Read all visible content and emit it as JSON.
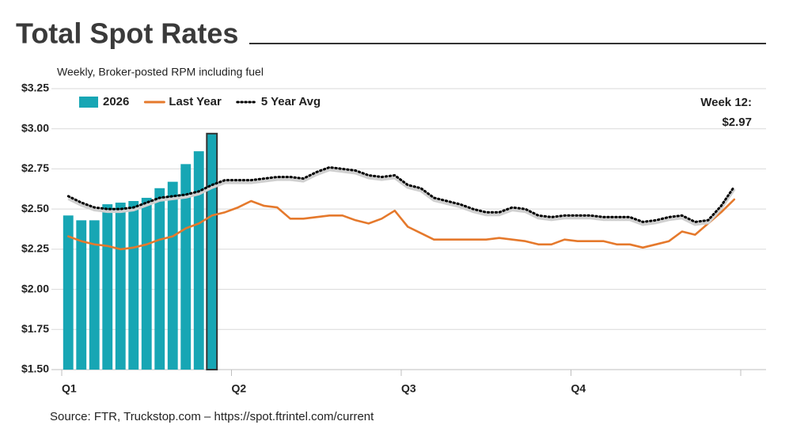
{
  "chart_data": {
    "type": "bar-line",
    "title": "Total Spot Rates",
    "subtitle": "Weekly, Broker-posted RPM including fuel",
    "source": "Source: FTR, Truckstop.com – https://spot.ftrintel.com/current",
    "annotation": "Week 12:",
    "x": [
      1,
      2,
      3,
      4,
      5,
      6,
      7,
      8,
      9,
      10,
      11,
      12,
      13,
      14,
      15,
      16,
      17,
      18,
      19,
      20,
      21,
      22,
      23,
      24,
      25,
      26,
      27,
      28,
      29,
      30,
      31,
      32,
      33,
      34,
      35,
      36,
      37,
      38,
      39,
      40,
      41,
      42,
      43,
      44,
      45,
      46,
      47,
      48,
      49,
      50,
      51,
      52
    ],
    "xlim": [
      0.5,
      52.5
    ],
    "xticks": [
      {
        "value": 0.5,
        "label": "Q1"
      },
      {
        "value": 13.5,
        "label": "Q2"
      },
      {
        "value": 26.5,
        "label": "Q3"
      },
      {
        "value": 39.5,
        "label": "Q4"
      }
    ],
    "ylim": [
      1.5,
      3.25
    ],
    "yticks": [
      {
        "value": 1.5,
        "label": "$1.50"
      },
      {
        "value": 1.75,
        "label": "$1.75"
      },
      {
        "value": 2.0,
        "label": "$2.00"
      },
      {
        "value": 2.25,
        "label": "$2.25"
      },
      {
        "value": 2.5,
        "label": "$2.50"
      },
      {
        "value": 2.75,
        "label": "$2.75"
      },
      {
        "value": 3.0,
        "label": "$3.00"
      },
      {
        "value": 3.25,
        "label": "$3.25"
      }
    ],
    "grid": true,
    "series": [
      {
        "name": "2026",
        "type": "bar",
        "color": "#17a6b4",
        "values": [
          2.46,
          2.43,
          2.43,
          2.53,
          2.54,
          2.55,
          2.57,
          2.63,
          2.67,
          2.78,
          2.86,
          2.97,
          null,
          null,
          null,
          null,
          null,
          null,
          null,
          null,
          null,
          null,
          null,
          null,
          null,
          null,
          null,
          null,
          null,
          null,
          null,
          null,
          null,
          null,
          null,
          null,
          null,
          null,
          null,
          null,
          null,
          null,
          null,
          null,
          null,
          null,
          null,
          null,
          null,
          null,
          null,
          null
        ],
        "value_labels": [
          null,
          null,
          null,
          null,
          null,
          null,
          null,
          null,
          null,
          null,
          null,
          "$2.97",
          null,
          null,
          null,
          null,
          null,
          null,
          null,
          null,
          null,
          null,
          null,
          null,
          null,
          null,
          null,
          null,
          null,
          null,
          null,
          null,
          null,
          null,
          null,
          null,
          null,
          null,
          null,
          null,
          null,
          null,
          null,
          null,
          null,
          null,
          null,
          null,
          null,
          null,
          null,
          null
        ]
      },
      {
        "name": "Last Year",
        "type": "line",
        "style": "solid",
        "color": "#e5792c",
        "values": [
          2.33,
          2.3,
          2.28,
          2.27,
          2.25,
          2.26,
          2.28,
          2.31,
          2.33,
          2.38,
          2.41,
          2.46,
          2.48,
          2.51,
          2.55,
          2.52,
          2.51,
          2.44,
          2.44,
          2.45,
          2.46,
          2.46,
          2.43,
          2.41,
          2.44,
          2.49,
          2.39,
          2.35,
          2.31,
          2.31,
          2.31,
          2.31,
          2.31,
          2.32,
          2.31,
          2.3,
          2.28,
          2.28,
          2.31,
          2.3,
          2.3,
          2.3,
          2.28,
          2.28,
          2.26,
          2.28,
          2.3,
          2.36,
          2.34,
          2.41,
          2.48,
          2.56
        ]
      },
      {
        "name": "5 Year Avg",
        "type": "line",
        "style": "dotted",
        "color": "#000000",
        "values": [
          2.58,
          2.54,
          2.51,
          2.5,
          2.5,
          2.51,
          2.54,
          2.57,
          2.58,
          2.59,
          2.61,
          2.65,
          2.68,
          2.68,
          2.68,
          2.69,
          2.7,
          2.7,
          2.69,
          2.73,
          2.76,
          2.75,
          2.74,
          2.71,
          2.7,
          2.71,
          2.65,
          2.63,
          2.57,
          2.55,
          2.53,
          2.5,
          2.48,
          2.48,
          2.51,
          2.5,
          2.46,
          2.45,
          2.46,
          2.46,
          2.46,
          2.45,
          2.45,
          2.45,
          2.42,
          2.43,
          2.45,
          2.46,
          2.42,
          2.43,
          2.52,
          2.64
        ]
      }
    ]
  }
}
